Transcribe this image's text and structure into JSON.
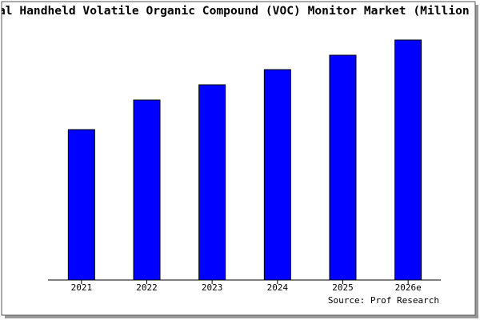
{
  "chart_data": {
    "type": "bar",
    "title": "al Handheld Volatile Organic Compound (VOC) Monitor Market (Million",
    "categories": [
      "2021",
      "2022",
      "2023",
      "2024",
      "2025",
      "2026e"
    ],
    "values": [
      188,
      225,
      244,
      263,
      281,
      300
    ],
    "color": "#0000ff",
    "ylim": [
      0,
      300
    ],
    "source": "Source: Prof Research"
  }
}
